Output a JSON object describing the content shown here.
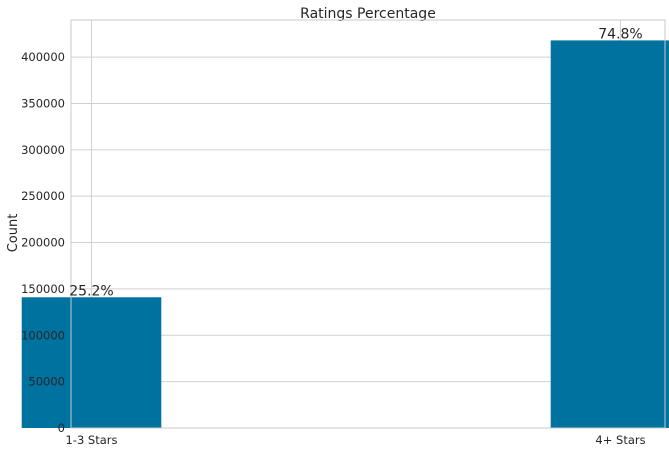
{
  "chart_data": {
    "type": "bar",
    "title": "Ratings Percentage",
    "xlabel": "",
    "ylabel": "Count",
    "categories": [
      "1-3 Stars",
      "4+ Stars"
    ],
    "values": [
      141000,
      418000
    ],
    "bar_labels": [
      "25.2%",
      "74.8%"
    ],
    "ylim": [
      0,
      440000
    ],
    "yticks": [
      0,
      50000,
      100000,
      150000,
      200000,
      250000,
      300000,
      350000,
      400000
    ],
    "ytick_labels": [
      "0",
      "50000",
      "100000",
      "150000",
      "200000",
      "250000",
      "300000",
      "350000",
      "400000"
    ],
    "grid": true,
    "legend": false,
    "colors": {
      "bar": "#0072a0",
      "grid": "#d0d0d0",
      "spine": "#c8c8c8",
      "text": "#262626"
    }
  }
}
